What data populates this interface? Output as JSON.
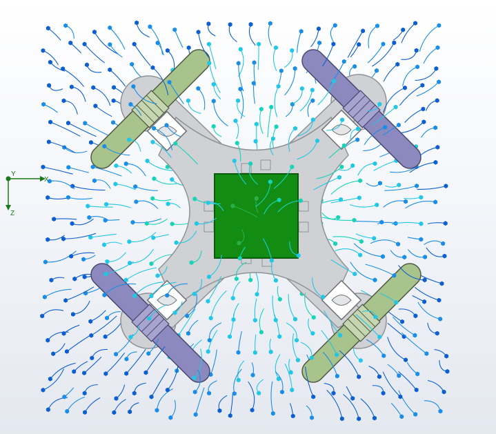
{
  "viewport": {
    "background_top": "#ffffff",
    "background_bottom": "#e4e8ef"
  },
  "model": {
    "frame_color": "#cfd1d4",
    "frame_edge": "#8f9296",
    "board_color": "#128c12",
    "board_edge": "#0a5c0a",
    "propeller_green": "#a9c38c",
    "propeller_purple": "#8c89bf",
    "flow_colors": [
      "#0d5fd1",
      "#1a8de6",
      "#20c7e6",
      "#17d4b8",
      "#2ab04a"
    ]
  },
  "triad": {
    "x_label": "X",
    "y_label": "Y",
    "z_label": "Z",
    "color": "#1a7a1a"
  }
}
